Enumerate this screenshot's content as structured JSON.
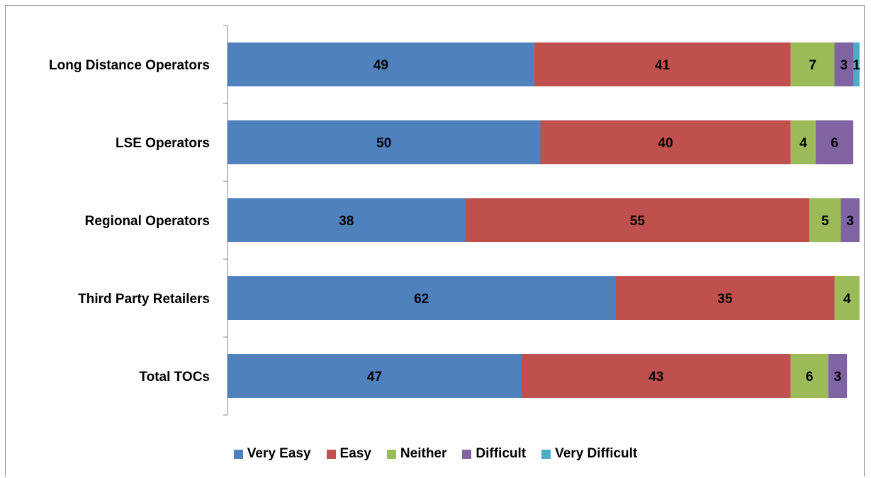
{
  "chart_data": {
    "type": "bar",
    "orientation": "horizontal",
    "stacked": true,
    "categories": [
      "Long Distance Operators",
      "LSE Operators",
      "Regional Operators",
      "Third Party Retailers",
      "Total TOCs"
    ],
    "series": [
      {
        "name": "Very Easy",
        "color": "#4F81BD",
        "values": [
          49,
          50,
          38,
          62,
          47
        ]
      },
      {
        "name": "Easy",
        "color": "#C0504D",
        "values": [
          41,
          40,
          55,
          35,
          43
        ]
      },
      {
        "name": "Neither",
        "color": "#9BBB59",
        "values": [
          7,
          4,
          5,
          4,
          6
        ]
      },
      {
        "name": "Difficult",
        "color": "#8064A2",
        "values": [
          3,
          6,
          3,
          0,
          3
        ]
      },
      {
        "name": "Very Difficult",
        "color": "#4BACC6",
        "values": [
          1,
          0,
          0,
          0,
          0
        ]
      }
    ],
    "xlim": [
      0,
      100
    ],
    "grid": false,
    "legend_position": "bottom"
  }
}
